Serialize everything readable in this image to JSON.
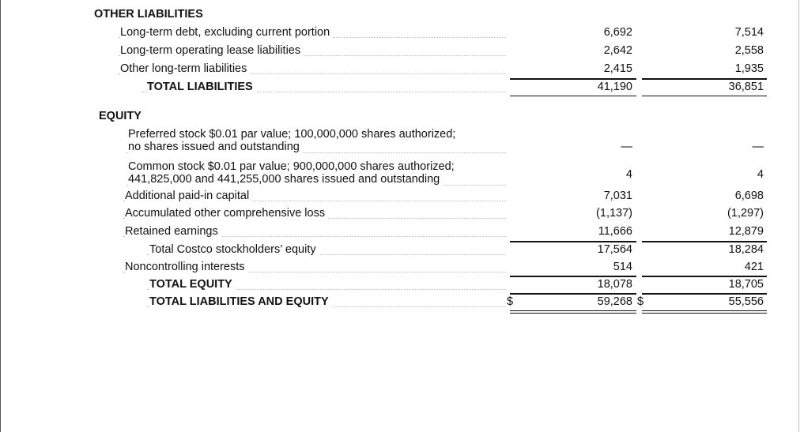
{
  "other_liabilities": {
    "heading": "OTHER LIABILITIES",
    "rows": [
      {
        "label": "Long-term debt, excluding current portion",
        "v1": "6,692",
        "v2": "7,514"
      },
      {
        "label": "Long-term operating lease liabilities",
        "v1": "2,642",
        "v2": "2,558"
      },
      {
        "label": "Other long-term liabilities",
        "v1": "2,415",
        "v2": "1,935"
      },
      {
        "label": "TOTAL LIABILITIES",
        "v1": "41,190",
        "v2": "36,851"
      }
    ]
  },
  "equity": {
    "heading": "EQUITY",
    "preferred": {
      "line1": "Preferred stock $0.01 par value; 100,000,000 shares authorized;",
      "line2": "no shares issued and outstanding",
      "v1": "—",
      "v2": "—"
    },
    "common": {
      "line1": "Common stock $0.01 par value; 900,000,000 shares authorized;",
      "line2": "441,825,000 and 441,255,000 shares issued and outstanding",
      "v1": "4",
      "v2": "4"
    },
    "rows": [
      {
        "label": "Additional paid-in capital",
        "v1": "7,031",
        "v2": "6,698"
      },
      {
        "label": "Accumulated other comprehensive loss",
        "v1": "(1,137)",
        "v2": "(1,297)"
      },
      {
        "label": "Retained earnings",
        "v1": "11,666",
        "v2": "12,879"
      },
      {
        "label": "Total Costco stockholders’ equity",
        "v1": "17,564",
        "v2": "18,284"
      },
      {
        "label": "Noncontrolling interests",
        "v1": "514",
        "v2": "421"
      },
      {
        "label": "TOTAL EQUITY",
        "v1": "18,078",
        "v2": "18,705"
      },
      {
        "label": "TOTAL LIABILITIES AND EQUITY",
        "v1": "59,268",
        "v2": "55,556",
        "currency": "$"
      }
    ]
  }
}
